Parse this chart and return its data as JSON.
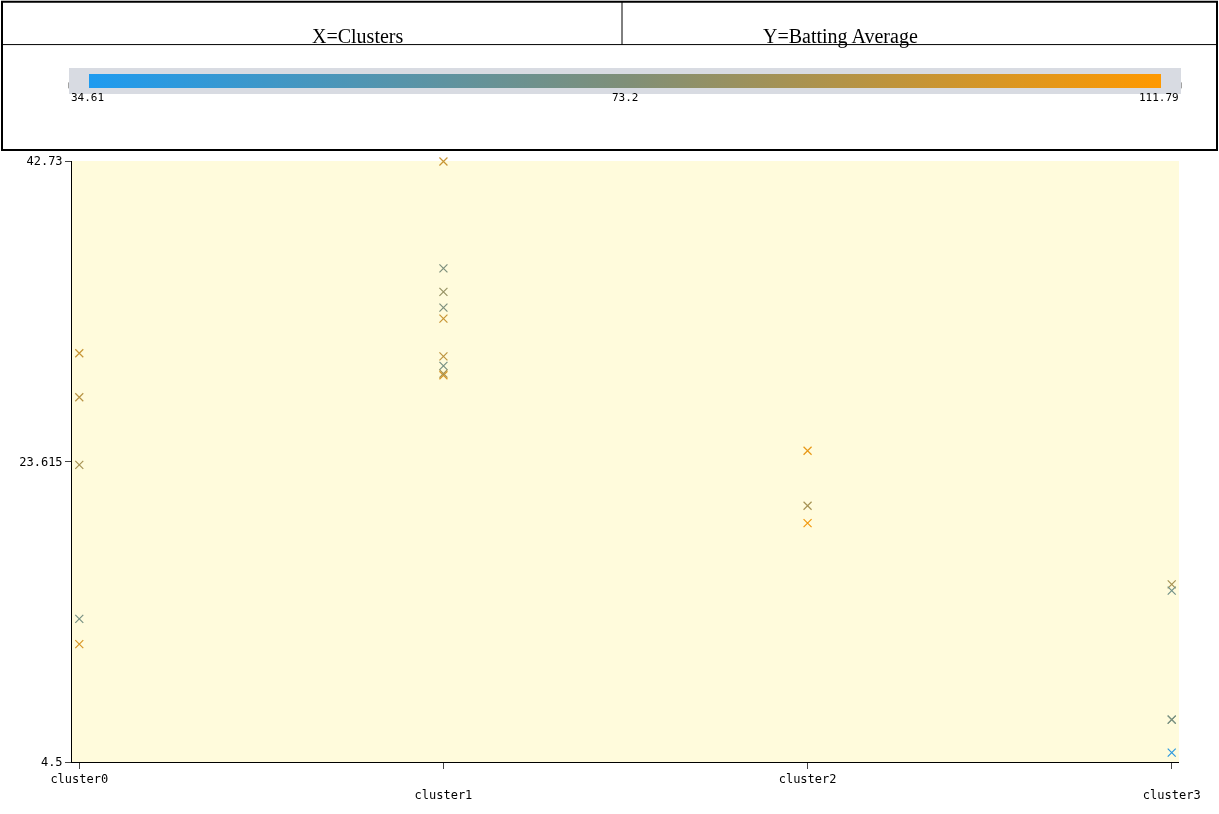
{
  "chart_data": {
    "type": "scatter",
    "annotations": [
      "X=Clusters",
      "Y=Batting Average"
    ],
    "categories": [
      "cluster0",
      "cluster1",
      "cluster2",
      "cluster3"
    ],
    "series": [
      {
        "x": [
          "cluster0",
          "cluster0",
          "cluster0",
          "cluster0",
          "cluster0",
          "cluster1",
          "cluster1",
          "cluster1",
          "cluster1",
          "cluster1",
          "cluster1",
          "cluster1",
          "cluster1",
          "cluster1",
          "cluster2",
          "cluster2",
          "cluster2",
          "cluster3",
          "cluster3",
          "cluster3",
          "cluster3",
          "cluster3"
        ],
        "values": [
          30.5,
          27.7,
          23.4,
          13.6,
          12.0,
          42.7,
          35.9,
          34.4,
          33.4,
          32.7,
          30.3,
          29.7,
          29.1,
          29.2,
          24.3,
          20.8,
          19.7,
          15.8,
          15.4,
          7.2,
          7.2,
          5.1
        ],
        "cvalues": [
          95,
          90,
          85,
          70,
          100,
          95,
          72,
          80,
          72,
          95,
          92,
          70,
          100,
          85,
          105,
          85,
          108,
          85,
          68,
          65,
          72,
          40
        ]
      }
    ],
    "ylim": [
      4.5,
      42.73
    ],
    "yticks": [
      4.5,
      23.615,
      42.73
    ],
    "clim": [
      34.61,
      111.79
    ],
    "cticks": [
      34.61,
      73.2,
      111.79
    ],
    "marker": "cross",
    "grid": false
  }
}
